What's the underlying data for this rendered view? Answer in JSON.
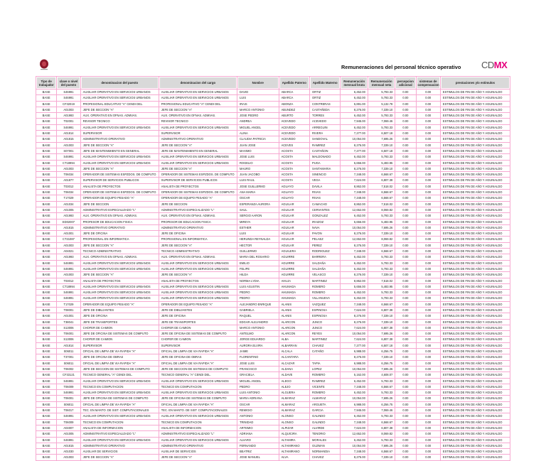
{
  "header": {
    "title": "Remuneraciones del personal técnico operativo",
    "brand_left": "CD",
    "brand_right": "MX",
    "brand_color": "#e6007e",
    "border_color": "#f6a9d1"
  },
  "columns": [
    "Tipo de trabajador",
    "clave o nivel del puesto",
    "denominacion del puesto",
    "denominacion del cargo",
    "Nombre",
    "Apellido Paterno",
    "Apellido Materno",
    "Remuneración mensual bruta",
    "Remuneración mensual neta",
    "percepcion adicional",
    "sistemas de compensacion",
    "prestaciones y/o estimulos"
  ],
  "rows": [
    [
      "BASE",
      "S46991",
      "AUXILIAR OPERATIVO EN SERVICIOS URBANOS",
      "AUXILIAR OPERATIVO EN SERVICIOS URBANOS",
      "DAVID",
      "ABARCA",
      "ORTIZ",
      "6,452.00",
      "5,793.33",
      "0.00",
      "0.00",
      "ESTIMULOS DE FIN DE AÑO Y AGUINALDO"
    ],
    [
      "BASE",
      "S46991",
      "AUXILIAR OPERATIVO EN SERVICIOS URBANOS",
      "AUXILIAR OPERATIVO EN SERVICIOS URBANOS",
      "LUIS",
      "ABARCA",
      "ORTIZ",
      "6,452.00",
      "5,793.33",
      "0.00",
      "0.00",
      "ESTIMULOS DE FIN DE AÑO Y AGUINALDO"
    ],
    [
      "BASE",
      "CF32019",
      "PROFESIONAL EDUCATIVO \"A\" CENDI DEL.",
      "PROFESIONAL EDUCATIVO \"A\" CENDI DEL.",
      "IRAIS",
      "ABONZA",
      "CONTRERAS",
      "5,891.00",
      "5,132.78",
      "0.00",
      "0.00",
      "ESTIMULOS DE FIN DE AÑO Y AGUINALDO"
    ],
    [
      "BASE",
      "A01003",
      "JEFE DE SECCION \"A\"",
      "JEFE DE SECCION \"A\"",
      "MARCO ANTONIO",
      "ABUNDEZ",
      "CASTAÑEDA",
      "8,276.00",
      "7,339.10",
      "0.00",
      "0.00",
      "ESTIMULOS DE FIN DE AÑO Y AGUINALDO"
    ],
    [
      "BASE",
      "A01993",
      "AUX. OPERATIVO EN OFNAS. ADMVAS.",
      "AUX. OPERATIVO EN OFNAS. ADMVAS.",
      "JOSE PEDRO",
      "ABURTO",
      "TORRES",
      "6,452.00",
      "5,793.33",
      "0.00",
      "0.00",
      "ESTIMULOS DE FIN DE AÑO Y AGUINALDO"
    ],
    [
      "BASE",
      "T02001",
      "REVISOR TECNICO",
      "REVISOR TECNICO",
      "ANDREA",
      "ACEVEDO",
      "ACEVEDO",
      "7,945.00",
      "7,069.46",
      "0.00",
      "0.00",
      "ESTIMULOS DE FIN DE AÑO Y AGUINALDO"
    ],
    [
      "BASE",
      "S46991",
      "AUXILIAR OPERATIVO EN SERVICIOS URBANOS",
      "AUXILIAR OPERATIVO EN SERVICIOS URBANOS",
      "MIGUEL ANGEL",
      "ACEVEDO",
      "ARREGUIN",
      "6,452.00",
      "5,793.33",
      "0.00",
      "0.00",
      "ESTIMULOS DE FIN DE AÑO Y AGUINALDO"
    ],
    [
      "BASE",
      "A01814",
      "SUPERVISOR",
      "SUPERVISOR",
      "ALINA",
      "ACEVEDO",
      "RIVERA",
      "7,277.00",
      "6,507.18",
      "0.00",
      "0.00",
      "ESTIMULOS DE FIN DE AÑO Y AGUINALDO"
    ],
    [
      "BASE",
      "A01815",
      "ADMINISTRATIVO OPERATIVO",
      "ADMINISTRATIVO OPERATIVO",
      "CLAUDIA PATRICIA",
      "ACEVEDO",
      "SANDOVAL",
      "10,054.00",
      "7,695.26",
      "0.00",
      "0.00",
      "ESTIMULOS DE FIN DE AÑO Y AGUINALDO"
    ],
    [
      "BASE",
      "A01003",
      "JEFE DE SECCION \"A\"",
      "JEFE DE SECCION \"A\"",
      "JUAN JOSE",
      "ACEVES",
      "RAMIREZ",
      "8,276.00",
      "7,339.10",
      "0.00",
      "0.00",
      "ESTIMULOS DE FIN DE AÑO Y AGUINALDO"
    ],
    [
      "BASE",
      "S07001",
      "JEFE DE MANTENIMIENTO EN GENERAL",
      "JEFE DE MANTENIMIENTO EN GENERAL",
      "MAXIMO",
      "ACOSTA",
      "CASTAÑON",
      "7,277.00",
      "6,507.18",
      "0.00",
      "0.00",
      "ESTIMULOS DE FIN DE AÑO Y AGUINALDO"
    ],
    [
      "BASE",
      "S46991",
      "AUXILIAR OPERATIVO EN SERVICIOS URBANOS",
      "AUXILIAR OPERATIVO EN SERVICIOS URBANOS",
      "JOSE LUIS",
      "ACOSTA",
      "MALDONADO",
      "6,452.00",
      "5,793.33",
      "0.00",
      "0.00",
      "ESTIMULOS DE FIN DE AÑO Y AGUINALDO"
    ],
    [
      "BASE",
      "CT18994",
      "AUXILIAR OPERATIVO EN SERVICIOS URBANOS",
      "AUXILIAR OPERATIVO EN SERVICIOS URBANOS",
      "ROGELIO",
      "ACOSTA",
      "PUGA",
      "5,656.00",
      "5,483.95",
      "0.00",
      "0.00",
      "ESTIMULOS DE FIN DE AÑO Y AGUINALDO"
    ],
    [
      "BASE",
      "A01003",
      "JEFE DE SECCION \"A\"",
      "JEFE DE SECCION \"A\"",
      "MAURO",
      "ACOSTA",
      "SANTAMARIA",
      "8,276.00",
      "7,339.10",
      "0.00",
      "0.00",
      "ESTIMULOS DE FIN DE AÑO Y AGUINALDO"
    ],
    [
      "BASE",
      "T06034",
      "OPERADOR DE SISTEMAS ESPZDOS. DE COMPUTO",
      "OPERADOR DE SISTEMAS ESPZDOS. DE COMPUTO",
      "JUAN JACOBO",
      "ACOSTA",
      "SINENCIO",
      "7,348.00",
      "6,568.67",
      "0.00",
      "0.00",
      "ESTIMULOS DE FIN DE AÑO Y AGUINALDO"
    ],
    [
      "BASE",
      "A01877",
      "SUPERVISOR DE SERVICIOS PUBLICOS",
      "SUPERVISOR DE SERVICIOS PUBLICOS",
      "LUIS RAUL",
      "ACOSTA",
      "VEGA",
      "7,624.00",
      "6,807.38",
      "0.00",
      "0.00",
      "ESTIMULOS DE FIN DE AÑO Y AGUINALDO"
    ],
    [
      "BASE",
      "T03012",
      "ANALISTA DE PROYECTOS",
      "ANALISTA DE PROYECTOS",
      "JOSE GUILLERMO",
      "AGUAYO",
      "DAVILA",
      "8,862.00",
      "7,518.02",
      "0.00",
      "0.00",
      "ESTIMULOS DE FIN DE AÑO Y AGUINALDO"
    ],
    [
      "BASE",
      "T06034",
      "OPERADOR DE SISTEMAS ESPZDOS. DE COMPUTO",
      "OPERADOR DE SISTEMAS ESPZDOS. DE COMPUTO",
      "ANA MARIA",
      "AGUAYO",
      "RIVAS",
      "7,348.00",
      "6,568.67",
      "0.00",
      "0.00",
      "ESTIMULOS DE FIN DE AÑO Y AGUINALDO"
    ],
    [
      "BASE",
      "T17029",
      "OPERADOR DE EQUIPO PESADO \"A\"",
      "OPERADOR DE EQUIPO PESADO \"A\"",
      "OSCAR",
      "AGUAYO",
      "RIVAS",
      "7,348.00",
      "6,568.67",
      "0.00",
      "0.00",
      "ESTIMULOS DE FIN DE AÑO Y AGUINALDO"
    ],
    [
      "BASE",
      "A01034",
      "JEFE DE SECCION",
      "JEFE DE SECCION",
      "ESPERANZA AURORA",
      "AGUILAR",
      "CAMACHO",
      "8,862.00",
      "7,518.02",
      "0.00",
      "0.00",
      "ESTIMULOS DE FIN DE AÑO Y AGUINALDO"
    ],
    [
      "BASE",
      "A01005",
      "ADMINISTRATIVO ESPECIALIZADO \"L\"",
      "ADMINISTRATIVO ESPECIALIZADO \"L\"",
      "SAUL",
      "AGUILAR",
      "CERVANTES",
      "12,652.00",
      "8,069.82",
      "0.00",
      "0.00",
      "ESTIMULOS DE FIN DE AÑO Y AGUINALDO"
    ],
    [
      "BASE",
      "A01993",
      "AUX. OPERATIVO EN OFNAS. ADMVAS.",
      "AUX. OPERATIVO EN OFNAS. ADMVAS.",
      "SERGIO AARON",
      "AGUILAR",
      "GONZALEZ",
      "6,452.00",
      "5,793.33",
      "0.00",
      "0.00",
      "ESTIMULOS DE FIN DE AÑO Y AGUINALDO"
    ],
    [
      "BASE",
      "ED02007",
      "PROFESOR DE EDUCACION FISICA",
      "PROFESOR DE EDUCACION FISICA",
      "MIREYA",
      "AGUILAR",
      "IRAIZOZ",
      "5,656.00",
      "5,483.95",
      "0.00",
      "0.00",
      "ESTIMULOS DE FIN DE AÑO Y AGUINALDO"
    ],
    [
      "BASE",
      "A01815",
      "ADMINISTRATIVO OPERATIVO",
      "ADMINISTRATIVO OPERATIVO",
      "ESTHER",
      "AGUILAR",
      "NAVA",
      "10,054.00",
      "7,695.26",
      "0.00",
      "0.00",
      "ESTIMULOS DE FIN DE AÑO Y AGUINALDO"
    ],
    [
      "BASE",
      "A01001",
      "JEFE DE OFICINA",
      "JEFE DE OFICINA",
      "LUIS",
      "AGUILAR",
      "PAVON",
      "8,276.00",
      "7,339.10",
      "0.00",
      "0.00",
      "ESTIMULOS DE FIN DE AÑO Y AGUINALDO"
    ],
    [
      "BASE",
      "CT21087",
      "PROFESIONAL EN INFORMATICA",
      "PROFESIONAL EN INFORMATICA",
      "HERUNDA REYNALDA",
      "AGUILAR",
      "PELAEZ",
      "12,652.00",
      "8,069.82",
      "0.00",
      "0.00",
      "ESTIMULOS DE FIN DE AÑO Y AGUINALDO"
    ],
    [
      "BASE",
      "A01003",
      "JEFE DE SECCION \"A\"",
      "JEFE DE SECCION \"A\"",
      "HECTOR",
      "AGUILAR",
      "PEREZ",
      "8,276.00",
      "7,339.10",
      "0.00",
      "0.00",
      "ESTIMULOS DE FIN DE AÑO Y AGUINALDO"
    ],
    [
      "BASE",
      "A04021",
      "TECNICO ADMINISTRATIVO",
      "TECNICO ADMINISTRATIVO",
      "GUILLERMO",
      "AGUILERA",
      "RODRIGUEZ",
      "7,348.00",
      "6,568.67",
      "0.00",
      "0.00",
      "ESTIMULOS DE FIN DE AÑO Y AGUINALDO"
    ],
    [
      "BASE",
      "A01993",
      "AUX. OPERATIVO EN OFNAS. ADMVAS.",
      "AUX. OPERATIVO EN OFNAS. ADMVAS.",
      "MARIA DEL ROSARIO",
      "AGUIRRE",
      "BARRERA",
      "6,452.00",
      "5,793.33",
      "0.00",
      "0.00",
      "ESTIMULOS DE FIN DE AÑO Y AGUINALDO"
    ],
    [
      "BASE",
      "S46991",
      "AUXILIAR OPERATIVO EN SERVICIOS URBANOS",
      "AUXILIAR OPERATIVO EN SERVICIOS URBANOS",
      "EMILIO",
      "AGUIRRE",
      "SALDAÑA",
      "6,452.00",
      "5,793.33",
      "0.00",
      "0.00",
      "ESTIMULOS DE FIN DE AÑO Y AGUINALDO"
    ],
    [
      "BASE",
      "S46991",
      "AUXILIAR OPERATIVO EN SERVICIOS URBANOS",
      "AUXILIAR OPERATIVO EN SERVICIOS URBANOS",
      "FELIPE",
      "AGUIRRE",
      "SALDAÑA",
      "6,452.00",
      "5,793.33",
      "0.00",
      "0.00",
      "ESTIMULOS DE FIN DE AÑO Y AGUINALDO"
    ],
    [
      "BASE",
      "A01003",
      "JEFE DE SECCION \"A\"",
      "JEFE DE SECCION \"A\"",
      "HILDA",
      "AGUIRRE",
      "VELASCO",
      "8,276.00",
      "7,339.10",
      "0.00",
      "0.00",
      "ESTIMULOS DE FIN DE AÑO Y AGUINALDO"
    ],
    [
      "BASE",
      "T03012",
      "ANALISTA DE PROYECTOS",
      "ANALISTA DE PROYECTOS",
      "NORMA LYDIA",
      "AHUJA",
      "MARTINEZ",
      "8,862.00",
      "7,518.02",
      "0.00",
      "0.00",
      "ESTIMULOS DE FIN DE AÑO Y AGUINALDO"
    ],
    [
      "BASE",
      "CT18994",
      "AUXILIAR OPERATIVO EN SERVICIOS URBANOS",
      "AUXILIAR OPERATIVO EN SERVICIOS URBANOS",
      "LUIS AGUSTIN",
      "AHUMADA",
      "ROMERO",
      "5,656.00",
      "5,483.95",
      "0.00",
      "0.00",
      "ESTIMULOS DE FIN DE AÑO Y AGUINALDO"
    ],
    [
      "BASE",
      "S46991",
      "AUXILIAR OPERATIVO EN SERVICIOS URBANOS",
      "AUXILIAR OPERATIVO EN SERVICIOS URBANOS",
      "PEDRO",
      "AHUMADA",
      "ROMERO",
      "6,452.00",
      "5,793.33",
      "0.00",
      "0.00",
      "ESTIMULOS DE FIN DE AÑO Y AGUINALDO"
    ],
    [
      "BASE",
      "S46991",
      "AUXILIAR OPERATIVO EN SERVICIOS URBANOS",
      "AUXILIAR OPERATIVO EN SERVICIOS URBANOS",
      "PEDRO",
      "AHUMADA",
      "VILLANUEVA",
      "6,452.00",
      "5,793.33",
      "0.00",
      "0.00",
      "ESTIMULOS DE FIN DE AÑO Y AGUINALDO"
    ],
    [
      "BASE",
      "T17029",
      "OPERADOR DE EQUIPO PESADO \"A\"",
      "OPERADOR DE EQUIPO PESADO \"A\"",
      "ALEJANDRO ENRIQUE",
      "ALANIS",
      "VAZQUEZ",
      "7,348.00",
      "6,568.67",
      "0.00",
      "0.00",
      "ESTIMULOS DE FIN DE AÑO Y AGUINALDO"
    ],
    [
      "BASE",
      "T08001",
      "JEFE DE DIBUJANTES",
      "JEFE DE DIBUJANTES",
      "GABRIELA",
      "ALANIS",
      "ESPINOSA",
      "7,624.00",
      "6,807.38",
      "0.00",
      "0.00",
      "ESTIMULOS DE FIN DE AÑO Y AGUINALDO"
    ],
    [
      "BASE",
      "A01001",
      "JEFE DE OFICINA",
      "JEFE DE OFICINA",
      "RAQUEL",
      "ALANIS",
      "ESPINOSA",
      "8,276.00",
      "7,339.10",
      "0.00",
      "0.00",
      "ESTIMULOS DE FIN DE AÑO Y AGUINALDO"
    ],
    [
      "BASE",
      "T38041",
      "JEFE DE TRANSPORTES",
      "JEFE DE TRANSPORTES",
      "EDGAR ALEJANDRO",
      "ALARCON",
      "JUNCO",
      "8,276.00",
      "7,339.10",
      "0.00",
      "0.00",
      "ESTIMULOS DE FIN DE AÑO Y AGUINALDO"
    ],
    [
      "BASE",
      "S13006",
      "CHOFER DE CAMION",
      "CHOFER DE CAMION",
      "MARCO ANTONIO",
      "ALARCON",
      "JUNCO",
      "7,624.00",
      "6,807.38",
      "0.00",
      "0.00",
      "ESTIMULOS DE FIN DE AÑO Y AGUINALDO"
    ],
    [
      "BASE",
      "T06001",
      "JEFE DE OFICINA DE SISTEMAS DE COMPUTO",
      "JEFE DE OFICINA DE SISTEMAS DE COMPUTO",
      "ANTELMO",
      "ALARCON",
      "REYES",
      "10,054.00",
      "7,695.26",
      "0.00",
      "0.00",
      "ESTIMULOS DE FIN DE AÑO Y AGUINALDO"
    ],
    [
      "BASE",
      "S13006",
      "CHOFER DE CAMION",
      "CHOFER DE CAMION",
      "JORGE EDUARDO",
      "ALBA",
      "MARTINEZ",
      "7,624.00",
      "6,807.38",
      "0.00",
      "0.00",
      "ESTIMULOS DE FIN DE AÑO Y AGUINALDO"
    ],
    [
      "BASE",
      "A01814",
      "SUPERVISOR",
      "SUPERVISOR",
      "AURORA ELVIRA",
      "ALBARRAN",
      "CHAVEZ",
      "7,277.00",
      "6,507.18",
      "0.00",
      "0.00",
      "ESTIMULOS DE FIN DE AÑO Y AGUINALDO"
    ],
    [
      "BASE",
      "S06011",
      "OFICIAL DE LIMPIA DE VIA RAPIDA \"A\"",
      "OFICIAL DE LIMPIA DE VIA RAPIDA \"A\"",
      "JAIME",
      "ALCALA",
      "CATAÑO",
      "6,988.00",
      "6,256.75",
      "0.00",
      "0.00",
      "ESTIMULOS DE FIN DE AÑO Y AGUINALDO"
    ],
    [
      "BASE",
      "T37001",
      "JEFE DE OFICINA DE OBRAS",
      "JEFE DE OFICINA DE OBRAS",
      "FLORENTINO",
      "ALCANTARA",
      "",
      "8,276.00",
      "7,339.10",
      "0.00",
      "0.00",
      "ESTIMULOS DE FIN DE AÑO Y AGUINALDO"
    ],
    [
      "BASE",
      "S06011",
      "OFICIAL DE LIMPIA DE VIA RAPIDA \"A\"",
      "OFICIAL DE LIMPIA DE VIA RAPIDA \"A\"",
      "JOSE LUIS",
      "ALCAZAR",
      "TAPIA",
      "6,988.00",
      "6,256.75",
      "0.00",
      "0.00",
      "ESTIMULOS DE FIN DE AÑO Y AGUINALDO"
    ],
    [
      "BASE",
      "T06002",
      "JEFE DE SECCION DE SISTEMAS DE COMPUTO",
      "JEFE DE SECCION DE SISTEMAS DE COMPUTO",
      "FRANCISCO",
      "ALDANA",
      "LOPEZ",
      "10,054.00",
      "7,695.26",
      "0.00",
      "0.00",
      "ESTIMULOS DE FIN DE AÑO Y AGUINALDO"
    ],
    [
      "BASE",
      "CF33121",
      "TECNICO GENERAL \"A\" CENDI DEL.",
      "TECNICO GENERAL \"A\" CENDI DEL.",
      "GRACIELA",
      "ALDAVE",
      "ROMERO",
      "5,162.00",
      "4,608.07",
      "0.00",
      "0.00",
      "ESTIMULOS DE FIN DE AÑO Y AGUINALDO"
    ],
    [
      "BASE",
      "S46991",
      "AUXILIAR OPERATIVO EN SERVICIOS URBANOS",
      "AUXILIAR OPERATIVO EN SERVICIOS URBANOS",
      "MIGUEL ANGEL",
      "ALEGO",
      "RAMIREZ",
      "6,452.00",
      "5,793.33",
      "0.00",
      "0.00",
      "ESTIMULOS DE FIN DE AÑO Y AGUINALDO"
    ],
    [
      "BASE",
      "T06009",
      "TECNICO EN COMPUTACION",
      "TECNICO EN COMPUTACION",
      "PEDRO",
      "ALEJO",
      "VICENTE",
      "7,348.00",
      "6,568.67",
      "0.00",
      "0.00",
      "ESTIMULOS DE FIN DE AÑO Y AGUINALDO"
    ],
    [
      "BASE",
      "S46991",
      "AUXILIAR OPERATIVO EN SERVICIOS URBANOS",
      "AUXILIAR OPERATIVO EN SERVICIOS URBANOS",
      "LUIS ANTONIO",
      "ALGUERA",
      "ROMERO",
      "6,452.00",
      "5,793.33",
      "0.00",
      "0.00",
      "ESTIMULOS DE FIN DE AÑO Y AGUINALDO"
    ],
    [
      "BASE",
      "T06001",
      "JEFE DE OFICINA DE SISTEMAS DE COMPUTO",
      "JEFE DE OFICINA DE SISTEMAS DE COMPUTO",
      "MARIA ADRIANA",
      "ALMARAZ",
      "ALMARAZ",
      "10,054.00",
      "7,695.26",
      "0.00",
      "0.00",
      "ESTIMULOS DE FIN DE AÑO Y AGUINALDO"
    ],
    [
      "BASE",
      "S06011",
      "OFICIAL DE LIMPIA DE VIA RAPIDA \"A\"",
      "OFICIAL DE LIMPIA DE VIA RAPIDA \"A\"",
      "OSCAR",
      "ALMARAZ",
      "ARGUETA",
      "6,988.00",
      "6,256.75",
      "0.00",
      "0.00",
      "ESTIMULOS DE FIN DE AÑO Y AGUINALDO"
    ],
    [
      "BASE",
      "T06017",
      "TEC. EN MANTO. DE SIST. COMPUTACIONALES",
      "TEC. EN MANTO. DE SIST. COMPUTACIONALES",
      "REMIGIO",
      "ALMARAZ",
      "GARCIA",
      "7,945.00",
      "7,069.46",
      "0.00",
      "0.00",
      "ESTIMULOS DE FIN DE AÑO Y AGUINALDO"
    ],
    [
      "BASE",
      "S46991",
      "AUXILIAR OPERATIVO EN SERVICIOS URBANOS",
      "AUXILIAR OPERATIVO EN SERVICIOS URBANOS",
      "ANTONIO",
      "ALONSO",
      "GALINDO",
      "6,452.00",
      "5,793.33",
      "0.00",
      "0.00",
      "ESTIMULOS DE FIN DE AÑO Y AGUINALDO"
    ],
    [
      "BASE",
      "T06009",
      "TECNICO EN COMPUTACION",
      "TECNICO EN COMPUTACION",
      "TRINIDAD",
      "ALONSO",
      "GALINDO",
      "7,348.00",
      "6,568.67",
      "0.00",
      "0.00",
      "ESTIMULOS DE FIN DE AÑO Y AGUINALDO"
    ],
    [
      "BASE",
      "A04007",
      "ANALISTA DE INFORMACION",
      "ANALISTA DE INFORMACION",
      "ARTEMIO",
      "ALPIZAR",
      "ALVIRDE",
      "7,624.00",
      "6,807.38",
      "0.00",
      "0.00",
      "ESTIMULOS DE FIN DE AÑO Y AGUINALDO"
    ],
    [
      "BASE",
      "A01005",
      "ADMINISTRATIVO ESPECIALIZADO \"L\"",
      "ADMINISTRATIVO ESPECIALIZADO \"L\"",
      "ADRIANA",
      "ALQUICIRA",
      "TENORIO",
      "12,652.00",
      "8,069.82",
      "0.00",
      "0.00",
      "ESTIMULOS DE FIN DE AÑO Y AGUINALDO"
    ],
    [
      "BASE",
      "S46991",
      "AUXILIAR OPERATIVO EN SERVICIOS URBANOS",
      "AUXILIAR OPERATIVO EN SERVICIOS URBANOS",
      "ALVARO",
      "ALTAMIRA",
      "MORALES",
      "6,452.00",
      "5,793.33",
      "0.00",
      "0.00",
      "ESTIMULOS DE FIN DE AÑO Y AGUINALDO"
    ],
    [
      "BASE",
      "A01815",
      "ADMINISTRATIVO OPERATIVO",
      "ADMINISTRATIVO OPERATIVO",
      "FERNANDO",
      "ALTAMIRANO",
      "GUZMAN",
      "10,054.00",
      "7,695.26",
      "0.00",
      "0.00",
      "ESTIMULOS DE FIN DE AÑO Y AGUINALDO"
    ],
    [
      "BASE",
      "A01030",
      "AUXILIAR DE SERVICIOS",
      "AUXILIAR DE SERVICIOS",
      "BEATRIZ",
      "ALTAMIRANO",
      "NORMANDIA",
      "7,348.00",
      "6,568.67",
      "0.00",
      "0.00",
      "ESTIMULOS DE FIN DE AÑO Y AGUINALDO"
    ],
    [
      "BASE",
      "A01003",
      "JEFE DE SECCION \"A\"",
      "JEFE DE SECCION \"A\"",
      "JOSE MANUEL",
      "ALVA",
      "CHAVEZ",
      "8,276.00",
      "7,339.10",
      "0.00",
      "0.00",
      "ESTIMULOS DE FIN DE AÑO Y AGUINALDO"
    ]
  ]
}
